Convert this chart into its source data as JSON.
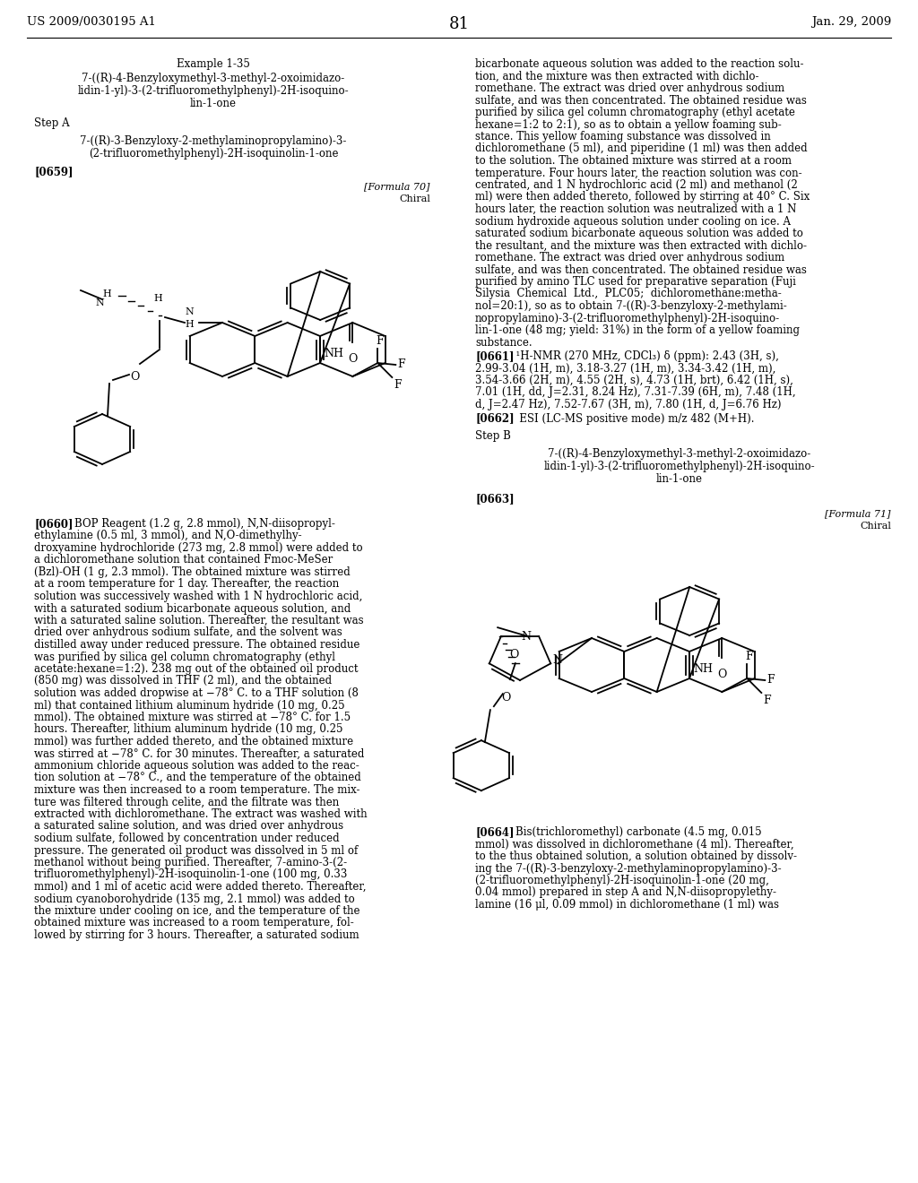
{
  "page_number": "81",
  "header_left": "US 2009/0030195 A1",
  "header_right": "Jan. 29, 2009",
  "background_color": "#ffffff",
  "text_color": "#000000",
  "example_title": "Example 1-35",
  "example_sub1": "7-((R)-4-Benzyloxymethyl-3-methyl-2-oxoimidazo-",
  "example_sub2": "lidin-1-yl)-3-(2-trifluoromethylphenyl)-2H-isoquino-",
  "example_sub3": "lin-1-one",
  "step_a": "Step A",
  "step_a_sub1": "7-((R)-3-Benzyloxy-2-methylaminopropylamino)-3-",
  "step_a_sub2": "(2-trifluoromethylphenyl)-2H-isoquinolin-1-one",
  "para_0659": "[0659]",
  "formula70_label": "[Formula 70]",
  "chiral70": "Chiral",
  "right_top_lines": [
    "bicarbonate aqueous solution was added to the reaction solu-",
    "tion, and the mixture was then extracted with dichlo-",
    "romethane. The extract was dried over anhydrous sodium",
    "sulfate, and was then concentrated. The obtained residue was",
    "purified by silica gel column chromatography (ethyl acetate",
    "hexane=1:2 to 2:1), so as to obtain a yellow foaming sub-",
    "stance. This yellow foaming substance was dissolved in",
    "dichloromethane (5 ml), and piperidine (1 ml) was then added",
    "to the solution. The obtained mixture was stirred at a room",
    "temperature. Four hours later, the reaction solution was con-",
    "centrated, and 1 N hydrochloric acid (2 ml) and methanol (2",
    "ml) were then added thereto, followed by stirring at 40° C. Six",
    "hours later, the reaction solution was neutralized with a 1 N",
    "sodium hydroxide aqueous solution under cooling on ice. A",
    "saturated sodium bicarbonate aqueous solution was added to",
    "the resultant, and the mixture was then extracted with dichlo-",
    "romethane. The extract was dried over anhydrous sodium",
    "sulfate, and was then concentrated. The obtained residue was",
    "purified by amino TLC used for preparative separation (Fuji",
    "Silysia  Chemical  Ltd.,  PLC05;  dichloromethane:metha-",
    "nol=20:1), so as to obtain 7-((R)-3-benzyloxy-2-methylami-",
    "nopropylamino)-3-(2-trifluoromethylphenyl)-2H-isoquino-",
    "lin-1-one (48 mg; yield: 31%) in the form of a yellow foaming",
    "substance."
  ],
  "para_0661_bold": "[0661]",
  "para_0661_text": "  ¹H-NMR (270 MHz, CDCl₃) δ (ppm): 2.43 (3H, s),",
  "para_0661_lines": [
    "2.99-3.04 (1H, m), 3.18-3.27 (1H, m), 3.34-3.42 (1H, m),",
    "3.54-3.66 (2H, m), 4.55 (2H, s), 4.73 (1H, brt), 6.42 (1H, s),",
    "7.01 (1H, dd, J=2.31, 8.24 Hz), 7.31-7.39 (6H, m), 7.48 (1H,",
    "d, J=2.47 Hz), 7.52-7.67 (3H, m), 7.80 (1H, d, J=6.76 Hz)"
  ],
  "para_0662_bold": "[0662]",
  "para_0662_text": "   ESI (LC-MS positive mode) m/z 482 (M+H).",
  "step_b": "Step B",
  "step_b_sub1": "7-((R)-4-Benzyloxymethyl-3-methyl-2-oxoimidazo-",
  "step_b_sub2": "lidin-1-yl)-3-(2-trifluoromethylphenyl)-2H-isoquino-",
  "step_b_sub3": "lin-1-one",
  "para_0663": "[0663]",
  "formula71_label": "[Formula 71]",
  "chiral71": "Chiral",
  "left_col_lines": [
    "[0660]   BOP Reagent (1.2 g, 2.8 mmol), N,N-diisopropyl-",
    "ethylamine (0.5 ml, 3 mmol), and N,O-dimethylhy-",
    "droxyamine hydrochloride (273 mg, 2.8 mmol) were added to",
    "a dichloromethane solution that contained Fmoc-MeSer",
    "(Bzl)-OH (1 g, 2.3 mmol). The obtained mixture was stirred",
    "at a room temperature for 1 day. Thereafter, the reaction",
    "solution was successively washed with 1 N hydrochloric acid,",
    "with a saturated sodium bicarbonate aqueous solution, and",
    "with a saturated saline solution. Thereafter, the resultant was",
    "dried over anhydrous sodium sulfate, and the solvent was",
    "distilled away under reduced pressure. The obtained residue",
    "was purified by silica gel column chromatography (ethyl",
    "acetate:hexane=1:2). 238 mg out of the obtained oil product",
    "(850 mg) was dissolved in THF (2 ml), and the obtained",
    "solution was added dropwise at −78° C. to a THF solution (8",
    "ml) that contained lithium aluminum hydride (10 mg, 0.25",
    "mmol). The obtained mixture was stirred at −78° C. for 1.5",
    "hours. Thereafter, lithium aluminum hydride (10 mg, 0.25",
    "mmol) was further added thereto, and the obtained mixture",
    "was stirred at −78° C. for 30 minutes. Thereafter, a saturated",
    "ammonium chloride aqueous solution was added to the reac-",
    "tion solution at −78° C., and the temperature of the obtained",
    "mixture was then increased to a room temperature. The mix-",
    "ture was filtered through celite, and the filtrate was then",
    "extracted with dichloromethane. The extract was washed with",
    "a saturated saline solution, and was dried over anhydrous",
    "sodium sulfate, followed by concentration under reduced",
    "pressure. The generated oil product was dissolved in 5 ml of",
    "methanol without being purified. Thereafter, 7-amino-3-(2-",
    "trifluoromethylphenyl)-2H-isoquinolin-1-one (100 mg, 0.33",
    "mmol) and 1 ml of acetic acid were added thereto. Thereafter,",
    "sodium cyanoborohydride (135 mg, 2.1 mmol) was added to",
    "the mixture under cooling on ice, and the temperature of the",
    "obtained mixture was increased to a room temperature, fol-",
    "lowed by stirring for 3 hours. Thereafter, a saturated sodium"
  ],
  "right_bot_lines": [
    "[0664]   Bis(trichloromethyl) carbonate (4.5 mg, 0.015",
    "mmol) was dissolved in dichloromethane (4 ml). Thereafter,",
    "to the thus obtained solution, a solution obtained by dissolv-",
    "ing the 7-((R)-3-benzyloxy-2-methylaminopropylamino)-3-",
    "(2-trifluoromethylphenyl)-2H-isoquinolin-1-one (20 mg,",
    "0.04 mmol) prepared in step A and N,N-diisopropylethy-",
    "lamine (16 μl, 0.09 mmol) in dichloromethane (1 ml) was"
  ]
}
